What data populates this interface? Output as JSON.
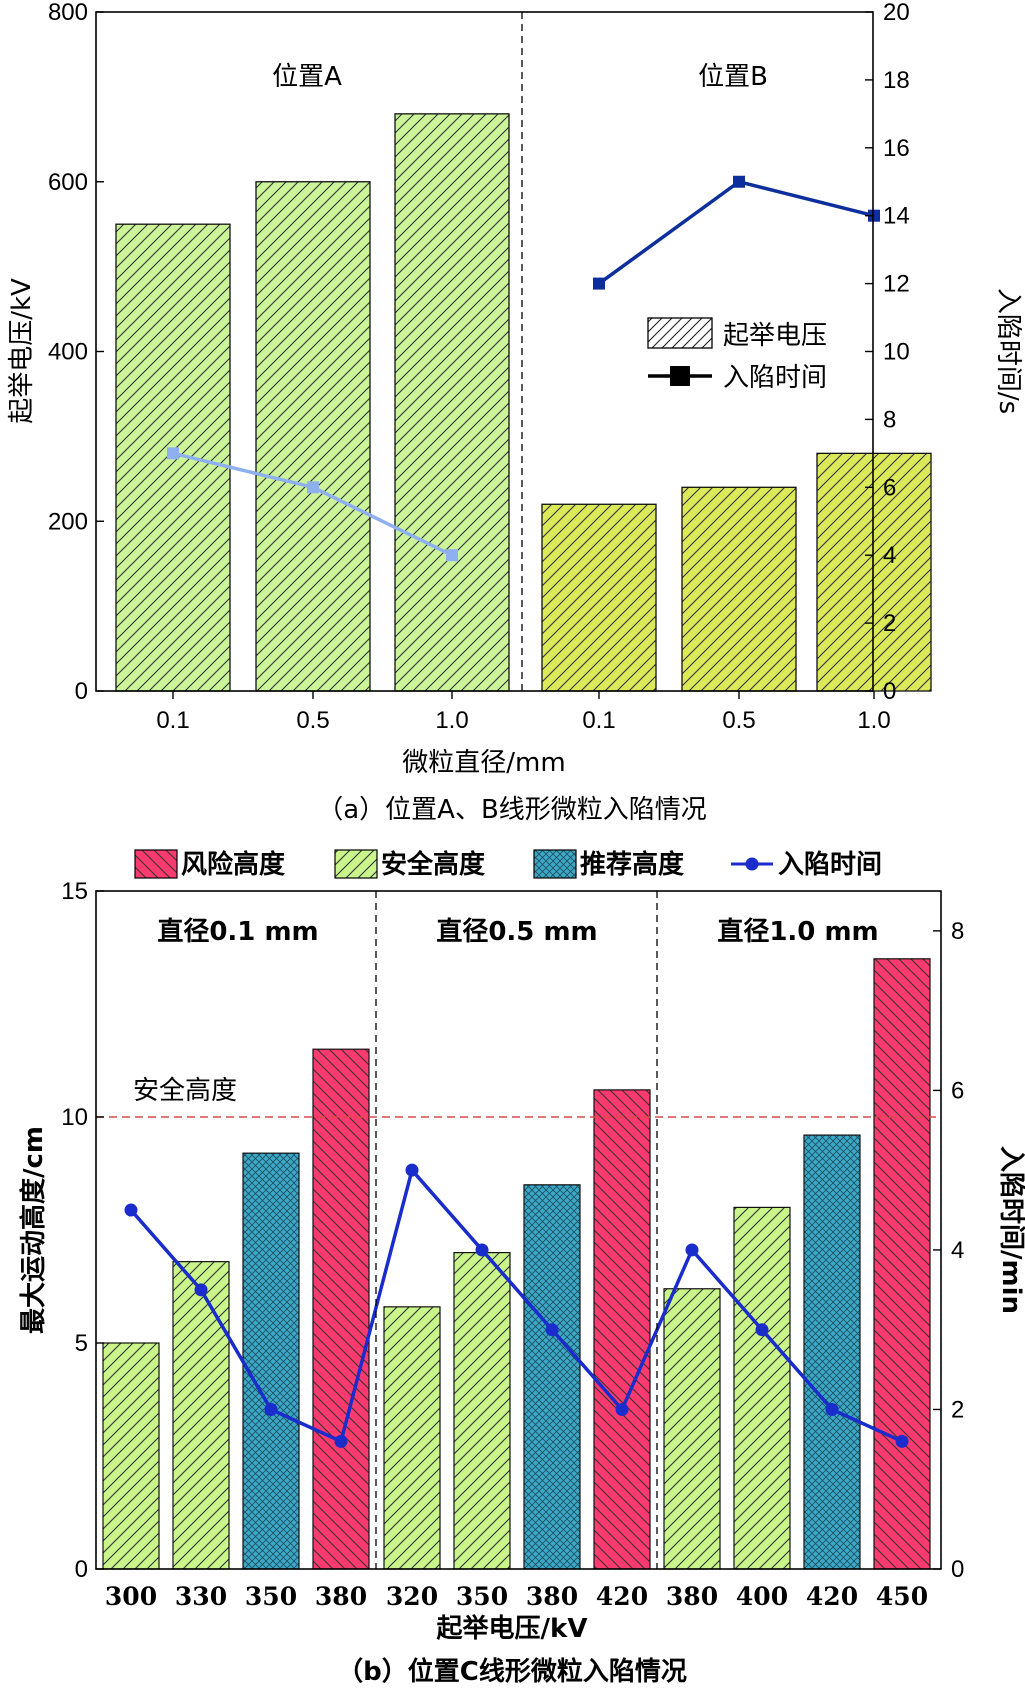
{
  "chart_data": [
    {
      "type": "bar",
      "title": "",
      "caption": "（a）位置A、B线形微粒入陷情况",
      "xlabel": "微粒直径/mm",
      "ylabel": "起举电压/kV",
      "y2label": "入陷时间/s",
      "ylim": [
        0,
        800
      ],
      "y2lim": [
        0,
        20
      ],
      "yticks": [
        "0",
        "200",
        "400",
        "600",
        "800"
      ],
      "y2ticks": [
        "0",
        "2",
        "4",
        "6",
        "8",
        "10",
        "12",
        "14",
        "16",
        "18",
        "20"
      ],
      "categories": [
        "0.1",
        "0.5",
        "1.0",
        "0.1",
        "0.5",
        "1.0"
      ],
      "groups": [
        {
          "label": "位置A",
          "bar_color": "#ccf59a",
          "line_color": "#8fb0f0"
        },
        {
          "label": "位置B",
          "bar_color": "#dcea5a",
          "line_color": "#0d2f9c"
        }
      ],
      "legend": [
        {
          "label": "起举电压",
          "kind": "bar"
        },
        {
          "label": "入陷时间",
          "kind": "line"
        }
      ],
      "series": [
        {
          "values": [
            550,
            600,
            680,
            220,
            240,
            280
          ]
        },
        {
          "values": [
            7,
            6,
            4,
            12,
            15,
            14
          ]
        }
      ]
    },
    {
      "type": "bar",
      "title": "",
      "caption": "（b）位置C线形微粒入陷情况",
      "xlabel": "起举电压/kV",
      "ylabel": "最大运动高度/cm",
      "y2label": "入陷时间/min",
      "ylim": [
        0,
        15
      ],
      "y2lim": [
        0,
        8.5
      ],
      "yticks": [
        "0",
        "5",
        "10",
        "15"
      ],
      "y2ticks": [
        "0",
        "2",
        "4",
        "6",
        "8"
      ],
      "categories": [
        "300",
        "330",
        "350",
        "380",
        "320",
        "350",
        "380",
        "420",
        "380",
        "400",
        "420",
        "450"
      ],
      "groups": [
        {
          "label": "直径0.1 mm"
        },
        {
          "label": "直径0.5 mm"
        },
        {
          "label": "直径1.0 mm"
        }
      ],
      "legend": [
        {
          "label": "风险高度",
          "color": "#ff3a6e",
          "kind": "risk"
        },
        {
          "label": "安全高度",
          "color": "#c9f58a",
          "kind": "safe"
        },
        {
          "label": "推荐高度",
          "color": "#3aa8c6",
          "kind": "rec"
        },
        {
          "label": "入陷时间",
          "color": "#1a2ccc",
          "kind": "line"
        }
      ],
      "safe_line": {
        "label": "安全高度",
        "value": 10,
        "color": "#d84a4a"
      },
      "bar_kinds": [
        "safe",
        "safe",
        "rec",
        "risk",
        "safe",
        "safe",
        "rec",
        "risk",
        "safe",
        "safe",
        "rec",
        "risk"
      ],
      "series": [
        {
          "values": [
            5.0,
            6.8,
            9.2,
            11.5,
            5.8,
            7.0,
            8.5,
            10.6,
            6.2,
            8.0,
            9.6,
            13.5
          ]
        },
        {
          "values": [
            4.5,
            3.5,
            2.0,
            1.6,
            5.0,
            4.0,
            3.0,
            2.0,
            4.0,
            3.0,
            2.0,
            1.6
          ]
        }
      ]
    }
  ]
}
